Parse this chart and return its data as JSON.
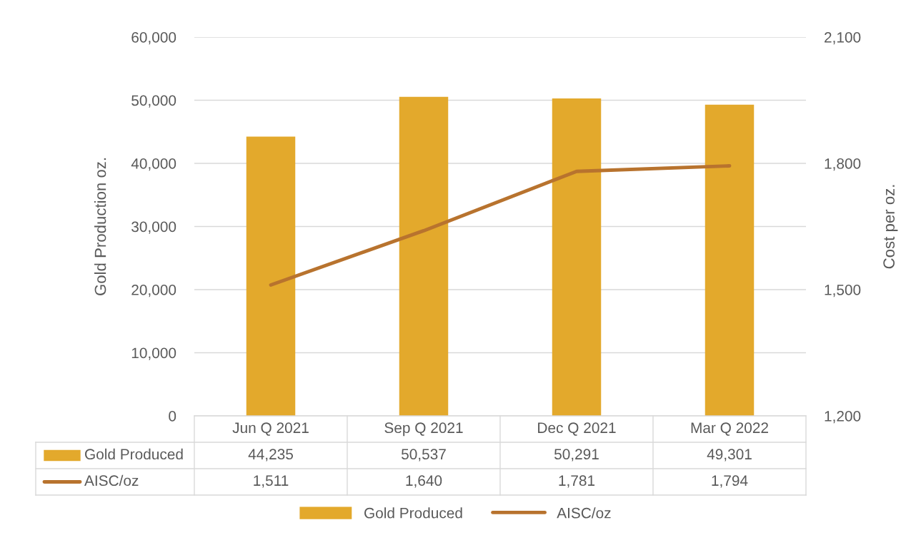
{
  "chart_data": {
    "type": "bar",
    "ylabel": "Gold Production oz.",
    "y2label": "Cost per oz.",
    "categories": [
      "Jun Q 2021",
      "Sep Q 2021",
      "Dec Q 2021",
      "Mar Q 2022"
    ],
    "series": [
      {
        "name": "Gold Produced",
        "color": "#e3a92c",
        "values": [
          44235,
          50537,
          50291,
          49301
        ],
        "value_labels": [
          "44,235",
          "50,537",
          "50,291",
          "49,301"
        ]
      },
      {
        "name": "AISC/oz",
        "type": "line",
        "axis": "y2",
        "color": "#b8732e",
        "values": [
          1511,
          1640,
          1781,
          1794
        ],
        "value_labels": [
          "1,511",
          "1,640",
          "1,781",
          "1,794"
        ]
      }
    ],
    "ylim": [
      0,
      60000
    ],
    "yticks": [
      {
        "value": 0,
        "label": "0"
      },
      {
        "value": 10000,
        "label": "10,000"
      },
      {
        "value": 20000,
        "label": "20,000"
      },
      {
        "value": 30000,
        "label": "30,000"
      },
      {
        "value": 40000,
        "label": "40,000"
      },
      {
        "value": 50000,
        "label": "50,000"
      },
      {
        "value": 60000,
        "label": "60,000"
      }
    ],
    "y2lim": [
      1200,
      2100
    ],
    "y2ticks": [
      {
        "value": 1200,
        "label": "1,200"
      },
      {
        "value": 1500,
        "label": "1,500"
      },
      {
        "value": 1800,
        "label": "1,800"
      },
      {
        "value": 2100,
        "label": "2,100"
      }
    ],
    "grid": "y",
    "legend": "bottom",
    "data_labels": true,
    "marker": "none",
    "line_style": "solid"
  }
}
